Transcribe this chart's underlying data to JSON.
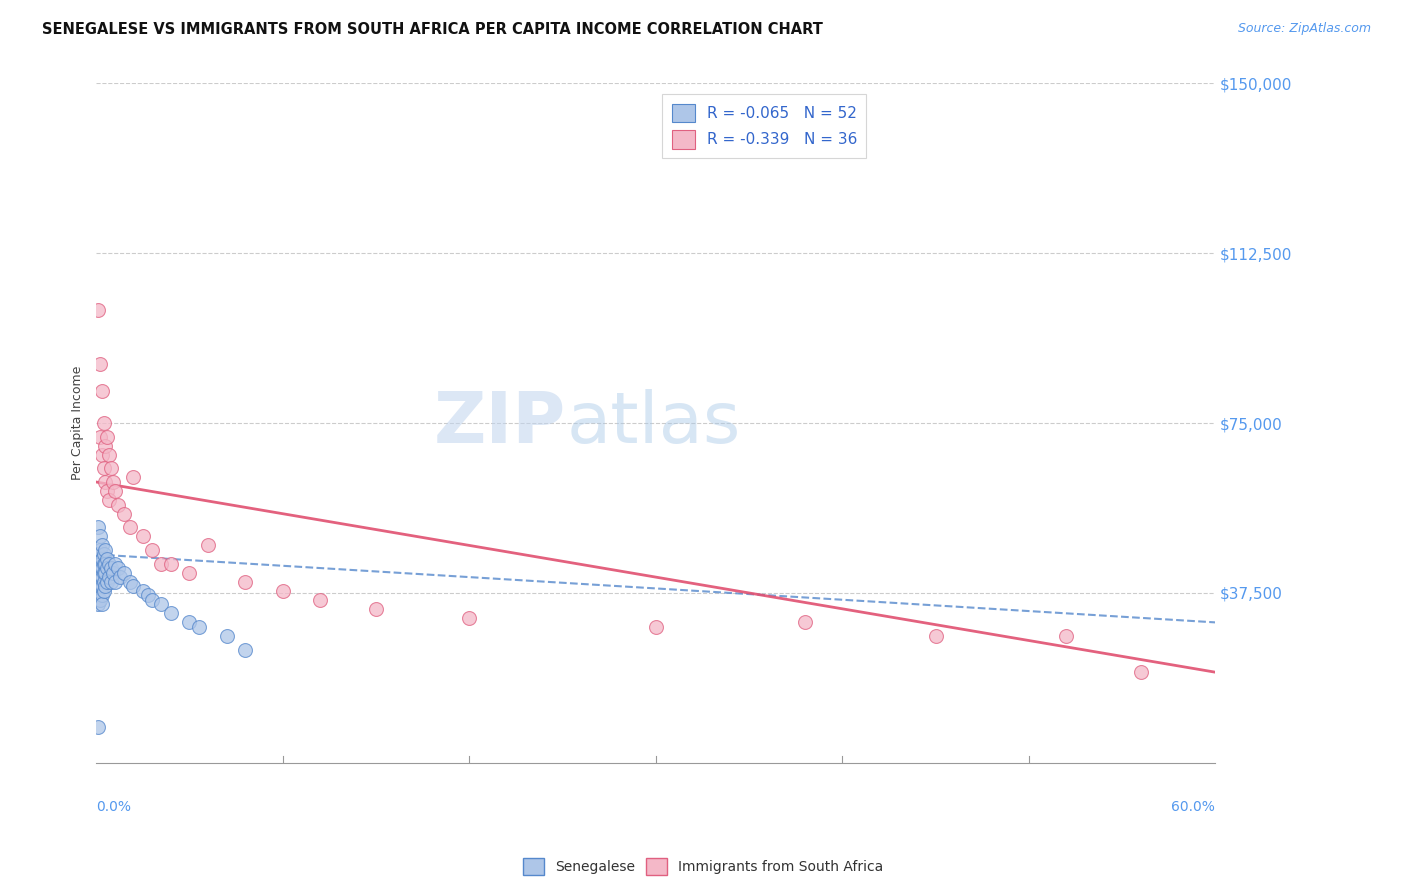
{
  "title": "SENEGALESE VS IMMIGRANTS FROM SOUTH AFRICA PER CAPITA INCOME CORRELATION CHART",
  "source": "Source: ZipAtlas.com",
  "ylabel": "Per Capita Income",
  "yticks": [
    0,
    37500,
    75000,
    112500,
    150000
  ],
  "ytick_labels": [
    "",
    "$37,500",
    "$75,000",
    "$112,500",
    "$150,000"
  ],
  "xlim": [
    0.0,
    0.6
  ],
  "ylim": [
    0,
    150000
  ],
  "blue_R": -0.065,
  "blue_N": 52,
  "pink_R": -0.339,
  "pink_N": 36,
  "blue_fill_color": "#aec6e8",
  "pink_fill_color": "#f4b8c8",
  "blue_edge_color": "#5588cc",
  "pink_edge_color": "#e06080",
  "trend_blue_color": "#5588cc",
  "trend_pink_color": "#e05070",
  "watermark_zip": "ZIP",
  "watermark_atlas": "atlas",
  "background_color": "#ffffff",
  "grid_color": "#cccccc",
  "legend_text_color": "#3366cc",
  "blue_trend_intercept": 46000,
  "blue_trend_slope": -25000,
  "pink_trend_intercept": 62000,
  "pink_trend_slope": -70000,
  "blue_points_x": [
    0.001,
    0.001,
    0.001,
    0.001,
    0.001,
    0.002,
    0.002,
    0.002,
    0.002,
    0.002,
    0.002,
    0.003,
    0.003,
    0.003,
    0.003,
    0.003,
    0.003,
    0.003,
    0.004,
    0.004,
    0.004,
    0.004,
    0.004,
    0.005,
    0.005,
    0.005,
    0.005,
    0.006,
    0.006,
    0.006,
    0.007,
    0.007,
    0.008,
    0.008,
    0.009,
    0.01,
    0.01,
    0.012,
    0.013,
    0.015,
    0.018,
    0.02,
    0.025,
    0.028,
    0.03,
    0.035,
    0.04,
    0.05,
    0.055,
    0.07,
    0.001,
    0.08
  ],
  "blue_points_y": [
    52000,
    46000,
    43000,
    38000,
    35000,
    50000,
    47000,
    44000,
    41000,
    39000,
    36000,
    48000,
    45000,
    43000,
    41000,
    39000,
    37000,
    35000,
    46000,
    44000,
    42000,
    40000,
    38000,
    47000,
    44000,
    42000,
    39000,
    45000,
    43000,
    40000,
    44000,
    41000,
    43000,
    40000,
    42000,
    44000,
    40000,
    43000,
    41000,
    42000,
    40000,
    39000,
    38000,
    37000,
    36000,
    35000,
    33000,
    31000,
    30000,
    28000,
    8000,
    25000
  ],
  "pink_points_x": [
    0.001,
    0.002,
    0.002,
    0.003,
    0.003,
    0.004,
    0.004,
    0.005,
    0.005,
    0.006,
    0.006,
    0.007,
    0.007,
    0.008,
    0.009,
    0.01,
    0.012,
    0.015,
    0.018,
    0.02,
    0.025,
    0.03,
    0.035,
    0.04,
    0.05,
    0.06,
    0.08,
    0.1,
    0.12,
    0.15,
    0.2,
    0.3,
    0.38,
    0.45,
    0.52,
    0.56
  ],
  "pink_points_y": [
    100000,
    88000,
    72000,
    82000,
    68000,
    75000,
    65000,
    70000,
    62000,
    72000,
    60000,
    68000,
    58000,
    65000,
    62000,
    60000,
    57000,
    55000,
    52000,
    63000,
    50000,
    47000,
    44000,
    44000,
    42000,
    48000,
    40000,
    38000,
    36000,
    34000,
    32000,
    30000,
    31000,
    28000,
    28000,
    20000
  ]
}
